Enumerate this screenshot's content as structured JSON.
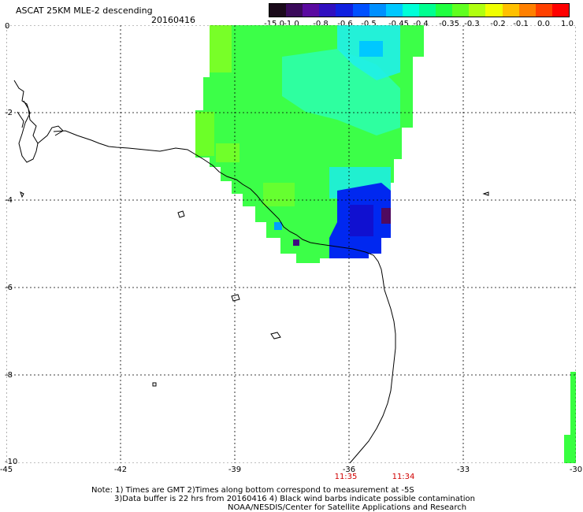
{
  "header": {
    "title": "ASCAT 25KM MLE-2 descending",
    "date": "20160416"
  },
  "colorbar": {
    "labels": [
      "-15.0",
      "-1.0",
      "-0.8",
      "-0.6",
      "-0.5",
      "-0.45",
      "-0.4",
      "-0.35",
      "-0.3",
      "-0.2",
      "-0.1",
      "0.0",
      "1.0"
    ],
    "colors": [
      "#1a0a1a",
      "#3a0a5a",
      "#5a0aa0",
      "#3010c0",
      "#1020e0",
      "#0050ff",
      "#0090ff",
      "#00c8ff",
      "#00ffd8",
      "#00ff90",
      "#20ff40",
      "#60ff20",
      "#b0ff10",
      "#f0ff00",
      "#ffc000",
      "#ff8000",
      "#ff4000",
      "#ff0000"
    ]
  },
  "axes": {
    "y_labels": [
      "0",
      "-2",
      "-4",
      "-6",
      "-8",
      "-10"
    ],
    "x_labels": [
      "-45",
      "-42",
      "-39",
      "-36",
      "-33",
      "-30"
    ],
    "time_labels": [
      "11:35",
      "11:34"
    ]
  },
  "notes": {
    "line1": "Note: 1) Times are GMT 2)Times along bottom correspond to measurement at -5S",
    "line2": "3)Data buffer is 22 hrs from 20160416 4) Black wind barbs indicate possible contamination",
    "line3": "NOAA/NESDIS/Center for Satellite Applications and Research"
  },
  "colors": {
    "grid": "#000000",
    "coast": "#000000",
    "time_label": "#d00000"
  }
}
